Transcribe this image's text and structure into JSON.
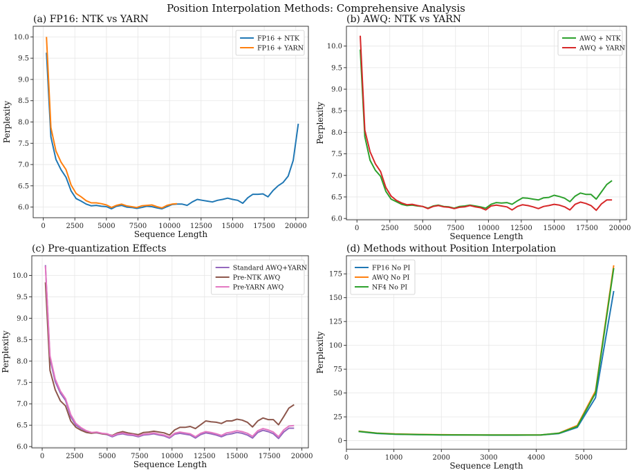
{
  "figure_title": "Position Interpolation Methods: Comprehensive Analysis",
  "chart_data": [
    {
      "type": "line",
      "title": "(a) FP16: NTK vs YARN",
      "xlabel": "Sequence Length",
      "ylabel": "Perplexity",
      "xlim": [
        -800,
        21000
      ],
      "ylim": [
        5.75,
        10.25
      ],
      "xticks": [
        0,
        2500,
        5000,
        7500,
        10000,
        12500,
        15000,
        17500,
        20000
      ],
      "yticks": [
        6.0,
        6.5,
        7.0,
        7.5,
        8.0,
        8.5,
        9.0,
        9.5,
        10.0
      ],
      "ytick_decimals": 1,
      "legend_position": "top-right",
      "series": [
        {
          "name": "FP16 + NTK",
          "color": "#1f77b4",
          "x": [
            250,
            600,
            1000,
            1400,
            1800,
            2200,
            2600,
            3000,
            3400,
            3800,
            4200,
            4600,
            5000,
            5400,
            5800,
            6200,
            6600,
            7000,
            7400,
            7800,
            8200,
            8600,
            9000,
            9400,
            9800,
            10200,
            10600,
            11000,
            11400,
            11800,
            12200,
            12600,
            13000,
            13400,
            13800,
            14200,
            14600,
            15000,
            15400,
            15800,
            16200,
            16600,
            17000,
            17400,
            17800,
            18200,
            18600,
            19000,
            19400,
            19800,
            20200
          ],
          "values": [
            9.63,
            7.65,
            7.12,
            6.88,
            6.7,
            6.38,
            6.2,
            6.14,
            6.07,
            6.03,
            6.04,
            6.02,
            6.01,
            5.96,
            6.02,
            6.04,
            6.0,
            5.99,
            5.97,
            5.99,
            6.02,
            6.01,
            5.98,
            5.96,
            6.01,
            6.06,
            6.07,
            6.07,
            6.04,
            6.12,
            6.18,
            6.16,
            6.14,
            6.12,
            6.16,
            6.18,
            6.21,
            6.18,
            6.16,
            6.09,
            6.22,
            6.3,
            6.3,
            6.31,
            6.24,
            6.39,
            6.5,
            6.58,
            6.73,
            7.1,
            7.96
          ]
        },
        {
          "name": "FP16 + YARN",
          "color": "#ff7f0e",
          "x": [
            250,
            600,
            1000,
            1400,
            1800,
            2200,
            2600,
            3000,
            3400,
            3800,
            4200,
            4600,
            5000,
            5400,
            5800,
            6200,
            6600,
            7000,
            7400,
            7800,
            8200,
            8600,
            9000,
            9400,
            9800,
            10200,
            10600
          ],
          "values": [
            10.0,
            7.87,
            7.32,
            7.06,
            6.88,
            6.52,
            6.32,
            6.24,
            6.15,
            6.1,
            6.1,
            6.08,
            6.05,
            5.99,
            6.04,
            6.07,
            6.03,
            6.01,
            5.99,
            6.03,
            6.04,
            6.05,
            6.01,
            5.98,
            6.04,
            6.07,
            6.08
          ]
        }
      ]
    },
    {
      "type": "line",
      "title": "(b) AWQ: NTK vs YARN",
      "xlabel": "Sequence Length",
      "ylabel": "Perplexity",
      "xlim": [
        -800,
        20500
      ],
      "ylim": [
        5.97,
        10.46
      ],
      "xticks": [
        0,
        2500,
        5000,
        7500,
        10000,
        12500,
        15000,
        17500,
        20000
      ],
      "yticks": [
        6.0,
        6.5,
        7.0,
        7.5,
        8.0,
        8.5,
        9.0,
        9.5,
        10.0
      ],
      "ytick_decimals": 1,
      "legend_position": "top-right",
      "series": [
        {
          "name": "AWQ + NTK",
          "color": "#2ca02c",
          "x": [
            250,
            600,
            1000,
            1400,
            1800,
            2200,
            2600,
            3000,
            3400,
            3800,
            4200,
            4600,
            5000,
            5400,
            5800,
            6200,
            6600,
            7000,
            7400,
            7800,
            8200,
            8600,
            9000,
            9400,
            9800,
            10200,
            10600,
            11000,
            11400,
            11800,
            12200,
            12600,
            13000,
            13400,
            13800,
            14200,
            14600,
            15000,
            15400,
            15800,
            16200,
            16600,
            17000,
            17400,
            17800,
            18200,
            18600,
            19000,
            19400
          ],
          "values": [
            9.92,
            7.9,
            7.35,
            7.12,
            6.98,
            6.63,
            6.45,
            6.39,
            6.33,
            6.3,
            6.31,
            6.29,
            6.28,
            6.24,
            6.29,
            6.31,
            6.28,
            6.27,
            6.24,
            6.28,
            6.29,
            6.31,
            6.29,
            6.27,
            6.24,
            6.33,
            6.37,
            6.36,
            6.37,
            6.33,
            6.41,
            6.48,
            6.47,
            6.45,
            6.43,
            6.48,
            6.49,
            6.54,
            6.51,
            6.47,
            6.39,
            6.52,
            6.59,
            6.56,
            6.56,
            6.45,
            6.62,
            6.79,
            6.88
          ]
        },
        {
          "name": "AWQ + YARN",
          "color": "#d62728",
          "x": [
            250,
            600,
            1000,
            1400,
            1800,
            2200,
            2600,
            3000,
            3400,
            3800,
            4200,
            4600,
            5000,
            5400,
            5800,
            6200,
            6600,
            7000,
            7400,
            7800,
            8200,
            8600,
            9000,
            9400,
            9800,
            10200,
            10600,
            11000,
            11400,
            11800,
            12200,
            12600,
            13000,
            13400,
            13800,
            14200,
            14600,
            15000,
            15400,
            15800,
            16200,
            16600,
            17000,
            17400,
            17800,
            18200,
            18600,
            19000,
            19400
          ],
          "values": [
            10.24,
            8.05,
            7.55,
            7.27,
            7.09,
            6.72,
            6.52,
            6.42,
            6.36,
            6.32,
            6.33,
            6.3,
            6.28,
            6.23,
            6.28,
            6.3,
            6.27,
            6.26,
            6.23,
            6.26,
            6.27,
            6.3,
            6.27,
            6.25,
            6.2,
            6.29,
            6.31,
            6.29,
            6.27,
            6.2,
            6.28,
            6.32,
            6.3,
            6.27,
            6.23,
            6.28,
            6.3,
            6.33,
            6.31,
            6.27,
            6.2,
            6.33,
            6.38,
            6.35,
            6.3,
            6.19,
            6.34,
            6.43,
            6.43
          ]
        }
      ]
    },
    {
      "type": "line",
      "title": "(c) Pre-quantization Effects",
      "xlabel": "Sequence Length",
      "ylabel": "Perplexity",
      "xlim": [
        -800,
        20500
      ],
      "ylim": [
        5.97,
        10.46
      ],
      "xticks": [
        0,
        2500,
        5000,
        7500,
        10000,
        12500,
        15000,
        17500,
        20000
      ],
      "yticks": [
        6.0,
        6.5,
        7.0,
        7.5,
        8.0,
        8.5,
        9.0,
        9.5,
        10.0
      ],
      "ytick_decimals": 1,
      "legend_position": "top-right",
      "series": [
        {
          "name": "Standard AWQ+YARN",
          "color": "#9467bd",
          "x": [
            250,
            600,
            1000,
            1400,
            1800,
            2200,
            2600,
            3000,
            3400,
            3800,
            4200,
            4600,
            5000,
            5400,
            5800,
            6200,
            6600,
            7000,
            7400,
            7800,
            8200,
            8600,
            9000,
            9400,
            9800,
            10200,
            10600,
            11000,
            11400,
            11800,
            12200,
            12600,
            13000,
            13400,
            13800,
            14200,
            14600,
            15000,
            15400,
            15800,
            16200,
            16600,
            17000,
            17400,
            17800,
            18200,
            18600,
            19000,
            19400
          ],
          "values": [
            10.24,
            8.05,
            7.52,
            7.25,
            7.08,
            6.7,
            6.5,
            6.42,
            6.36,
            6.32,
            6.32,
            6.3,
            6.28,
            6.23,
            6.28,
            6.3,
            6.27,
            6.26,
            6.23,
            6.27,
            6.28,
            6.3,
            6.27,
            6.25,
            6.2,
            6.29,
            6.31,
            6.29,
            6.27,
            6.2,
            6.28,
            6.32,
            6.3,
            6.27,
            6.23,
            6.28,
            6.3,
            6.33,
            6.31,
            6.27,
            6.2,
            6.33,
            6.38,
            6.35,
            6.3,
            6.19,
            6.34,
            6.43,
            6.43
          ]
        },
        {
          "name": "Pre-NTK AWQ",
          "color": "#8c564b",
          "x": [
            250,
            600,
            1000,
            1400,
            1800,
            2200,
            2600,
            3000,
            3400,
            3800,
            4200,
            4600,
            5000,
            5400,
            5800,
            6200,
            6600,
            7000,
            7400,
            7800,
            8200,
            8600,
            9000,
            9400,
            9800,
            10200,
            10600,
            11000,
            11400,
            11800,
            12200,
            12600,
            13000,
            13400,
            13800,
            14200,
            14600,
            15000,
            15400,
            15800,
            16200,
            16600,
            17000,
            17400,
            17800,
            18200,
            18600,
            19000,
            19400
          ],
          "values": [
            9.84,
            7.78,
            7.33,
            7.07,
            6.95,
            6.6,
            6.45,
            6.38,
            6.33,
            6.31,
            6.33,
            6.3,
            6.29,
            6.26,
            6.32,
            6.35,
            6.32,
            6.3,
            6.28,
            6.33,
            6.34,
            6.36,
            6.34,
            6.32,
            6.27,
            6.39,
            6.45,
            6.45,
            6.47,
            6.42,
            6.51,
            6.6,
            6.58,
            6.57,
            6.54,
            6.6,
            6.6,
            6.64,
            6.62,
            6.57,
            6.46,
            6.6,
            6.67,
            6.63,
            6.63,
            6.51,
            6.7,
            6.9,
            6.98
          ]
        },
        {
          "name": "Pre-YARN AWQ",
          "color": "#e377c2",
          "x": [
            250,
            600,
            1000,
            1400,
            1800,
            2200,
            2600,
            3000,
            3400,
            3800,
            4200,
            4600,
            5000,
            5400,
            5800,
            6200,
            6600,
            7000,
            7400,
            7800,
            8200,
            8600,
            9000,
            9400,
            9800,
            10200,
            10600,
            11000,
            11400,
            11800,
            12200,
            12600,
            13000,
            13400,
            13800,
            14200,
            14600,
            15000,
            15400,
            15800,
            16200,
            16600,
            17000,
            17400,
            17800,
            18200,
            18600,
            19000,
            19400
          ],
          "values": [
            10.22,
            8.12,
            7.58,
            7.3,
            7.12,
            6.75,
            6.54,
            6.44,
            6.37,
            6.33,
            6.34,
            6.31,
            6.3,
            6.25,
            6.3,
            6.32,
            6.29,
            6.28,
            6.25,
            6.29,
            6.3,
            6.32,
            6.29,
            6.27,
            6.22,
            6.31,
            6.34,
            6.32,
            6.3,
            6.23,
            6.31,
            6.35,
            6.33,
            6.3,
            6.26,
            6.32,
            6.34,
            6.37,
            6.35,
            6.31,
            6.24,
            6.37,
            6.42,
            6.39,
            6.34,
            6.23,
            6.39,
            6.48,
            6.49
          ]
        }
      ]
    },
    {
      "type": "line",
      "title": "(d) Methods without Position Interpolation",
      "xlabel": "Sequence Length",
      "ylabel": "Perplexity",
      "xlim": [
        0,
        5900
      ],
      "ylim": [
        -9,
        194
      ],
      "xticks": [
        0,
        1000,
        2000,
        3000,
        4000,
        5000
      ],
      "yticks": [
        0,
        25,
        50,
        75,
        100,
        125,
        150,
        175
      ],
      "ytick_decimals": 0,
      "legend_position": "top-left",
      "series": [
        {
          "name": "FP16 No PI",
          "color": "#1f77b4",
          "x": [
            256,
            640,
            1024,
            1536,
            2048,
            2560,
            3072,
            3584,
            4096,
            4480,
            4864,
            5248,
            5632
          ],
          "values": [
            9.6,
            7.6,
            6.8,
            6.3,
            6.0,
            5.9,
            5.8,
            5.8,
            5.9,
            7.5,
            14,
            45,
            157
          ]
        },
        {
          "name": "AWQ No PI",
          "color": "#ff7f0e",
          "x": [
            256,
            640,
            1024,
            1536,
            2048,
            2560,
            3072,
            3584,
            4096,
            4480,
            4864,
            5248,
            5632
          ],
          "values": [
            10.0,
            8.0,
            7.1,
            6.6,
            6.3,
            6.1,
            6.0,
            6.0,
            6.1,
            8.0,
            16,
            52,
            184
          ]
        },
        {
          "name": "NF4 No PI",
          "color": "#2ca02c",
          "x": [
            256,
            640,
            1024,
            1536,
            2048,
            2560,
            3072,
            3584,
            4096,
            4480,
            4864,
            5248,
            5632
          ],
          "values": [
            9.8,
            7.8,
            6.9,
            6.4,
            6.1,
            6.0,
            5.9,
            5.9,
            6.0,
            7.8,
            15,
            50,
            181
          ]
        }
      ]
    }
  ]
}
